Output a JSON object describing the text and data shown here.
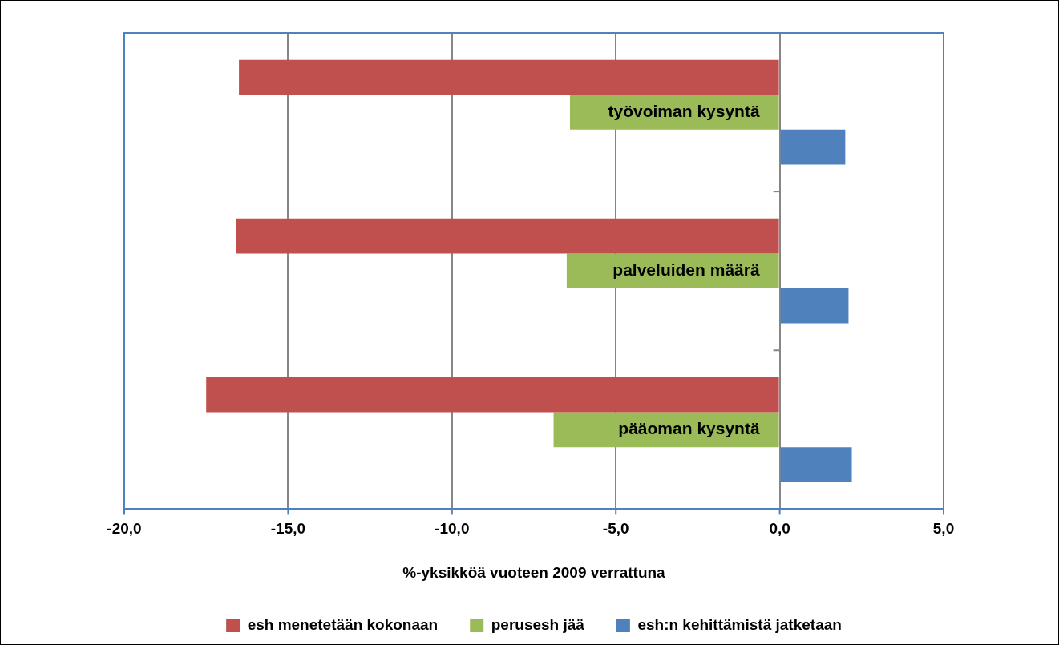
{
  "chart_data": {
    "type": "bar",
    "orientation": "horizontal",
    "xlabel": "%-yksikköä vuoteen 2009 verrattuna",
    "categories": [
      "työvoiman kysyntä",
      "palveluiden määrä",
      "pääoman kysyntä"
    ],
    "series": [
      {
        "name": "esh menetetään kokonaan",
        "color": "#c0504d",
        "values": [
          -16.5,
          -16.6,
          -17.5
        ]
      },
      {
        "name": "perusesh jää",
        "color": "#9bbb59",
        "values": [
          -6.4,
          -6.5,
          -6.9
        ]
      },
      {
        "name": "esh:n kehittämistä jatketaan",
        "color": "#4f81bd",
        "values": [
          2.0,
          2.1,
          2.2
        ]
      }
    ],
    "xlim": [
      -20,
      5
    ],
    "xticks": [
      {
        "value": -20,
        "label": "-20,0"
      },
      {
        "value": -15,
        "label": "-15,0"
      },
      {
        "value": -10,
        "label": "-10,0"
      },
      {
        "value": -5,
        "label": "-5,0"
      },
      {
        "value": 0,
        "label": "0,0"
      },
      {
        "value": 5,
        "label": "5,0"
      }
    ],
    "grid": "x",
    "legend": "bottom"
  }
}
